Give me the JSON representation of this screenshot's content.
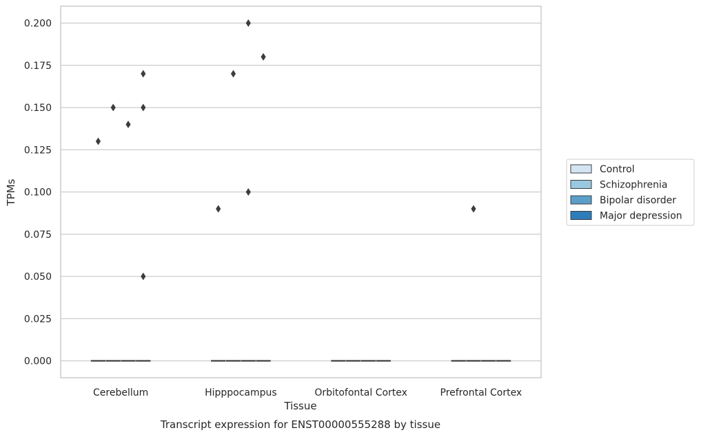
{
  "chart_data": {
    "type": "box",
    "title": "Transcript expression for ENST00000555288 by tissue",
    "xlabel": "Tissue",
    "ylabel": "TPMs",
    "categories": [
      "Cerebellum",
      "Hipppocampus",
      "Orbitofontal Cortex",
      "Prefrontal Cortex"
    ],
    "ylim": [
      -0.01,
      0.21
    ],
    "yticks": [
      "0.000",
      "0.025",
      "0.050",
      "0.075",
      "0.100",
      "0.125",
      "0.150",
      "0.175",
      "0.200"
    ],
    "grid": true,
    "legend_position": "right",
    "series": [
      {
        "name": "Control",
        "color": "#d3e4f3",
        "boxes": [
          {
            "category": "Cerebellum",
            "q1": 0,
            "median": 0,
            "q3": 0,
            "outliers": [
              0.13
            ]
          },
          {
            "category": "Hipppocampus",
            "q1": 0,
            "median": 0,
            "q3": 0,
            "outliers": [
              0.09
            ]
          },
          {
            "category": "Orbitofontal Cortex",
            "q1": 0,
            "median": 0,
            "q3": 0,
            "outliers": []
          },
          {
            "category": "Prefrontal Cortex",
            "q1": 0,
            "median": 0,
            "q3": 0,
            "outliers": []
          }
        ]
      },
      {
        "name": "Schizophrenia",
        "color": "#9ac8e0",
        "boxes": [
          {
            "category": "Cerebellum",
            "q1": 0,
            "median": 0,
            "q3": 0,
            "outliers": [
              0.15
            ]
          },
          {
            "category": "Hipppocampus",
            "q1": 0,
            "median": 0,
            "q3": 0,
            "outliers": [
              0.17
            ]
          },
          {
            "category": "Orbitofontal Cortex",
            "q1": 0,
            "median": 0,
            "q3": 0,
            "outliers": []
          },
          {
            "category": "Prefrontal Cortex",
            "q1": 0,
            "median": 0,
            "q3": 0,
            "outliers": [
              0.09
            ]
          }
        ]
      },
      {
        "name": "Bipolar disorder",
        "color": "#5b9ec9",
        "boxes": [
          {
            "category": "Cerebellum",
            "q1": 0,
            "median": 0,
            "q3": 0,
            "outliers": [
              0.14
            ]
          },
          {
            "category": "Hipppocampus",
            "q1": 0,
            "median": 0,
            "q3": 0,
            "outliers": [
              0.2,
              0.1
            ]
          },
          {
            "category": "Orbitofontal Cortex",
            "q1": 0,
            "median": 0,
            "q3": 0,
            "outliers": []
          },
          {
            "category": "Prefrontal Cortex",
            "q1": 0,
            "median": 0,
            "q3": 0,
            "outliers": []
          }
        ]
      },
      {
        "name": "Major depression",
        "color": "#2d7dbb",
        "boxes": [
          {
            "category": "Cerebellum",
            "q1": 0,
            "median": 0,
            "q3": 0,
            "outliers": [
              0.17,
              0.15,
              0.05
            ]
          },
          {
            "category": "Hipppocampus",
            "q1": 0,
            "median": 0,
            "q3": 0,
            "outliers": [
              0.18
            ]
          },
          {
            "category": "Orbitofontal Cortex",
            "q1": 0,
            "median": 0,
            "q3": 0,
            "outliers": []
          },
          {
            "category": "Prefrontal Cortex",
            "q1": 0,
            "median": 0,
            "q3": 0,
            "outliers": []
          }
        ]
      }
    ]
  }
}
